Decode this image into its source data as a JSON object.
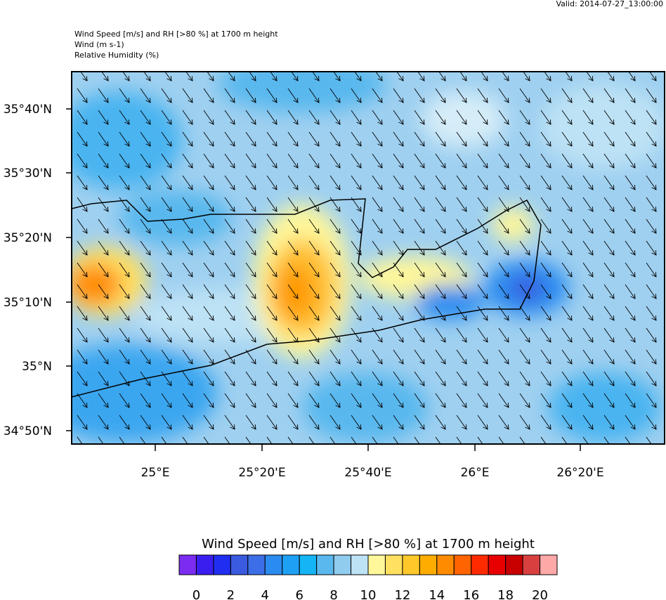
{
  "valid": "Valid: 2014-07-27_13:00:00",
  "header": {
    "title": "Wind Speed [m/s] and RH [>80 %] at 1700 m height",
    "wind": "Wind   (m s-1)",
    "rh": "Relative Humidity   (%)"
  },
  "map": {
    "lat_labels": [
      "35°40'N",
      "35°30'N",
      "35°20'N",
      "35°10'N",
      "35°N",
      "34°50'N"
    ],
    "lon_labels": [
      "25°E",
      "25°20'E",
      "25°40'E",
      "26°E",
      "26°20'E"
    ]
  },
  "colorbar": {
    "title": "Wind Speed [m/s] and RH [>80 %] at 1700 m height",
    "colors": [
      "#7b2cf0",
      "#3a1ef0",
      "#1f2ef0",
      "#3a5ae0",
      "#3c6ee8",
      "#2a8cf0",
      "#1ea0f5",
      "#14b4f5",
      "#5ab8ee",
      "#90ccee",
      "#bde2f5",
      "#fff79a",
      "#ffe060",
      "#fec82a",
      "#ffac00",
      "#ff8c00",
      "#ff6400",
      "#ff2a00",
      "#e80000",
      "#c80000",
      "#d84040",
      "#ffa8a8"
    ],
    "labels": [
      0,
      2,
      4,
      6,
      8,
      10,
      12,
      14,
      16,
      18,
      20
    ]
  }
}
